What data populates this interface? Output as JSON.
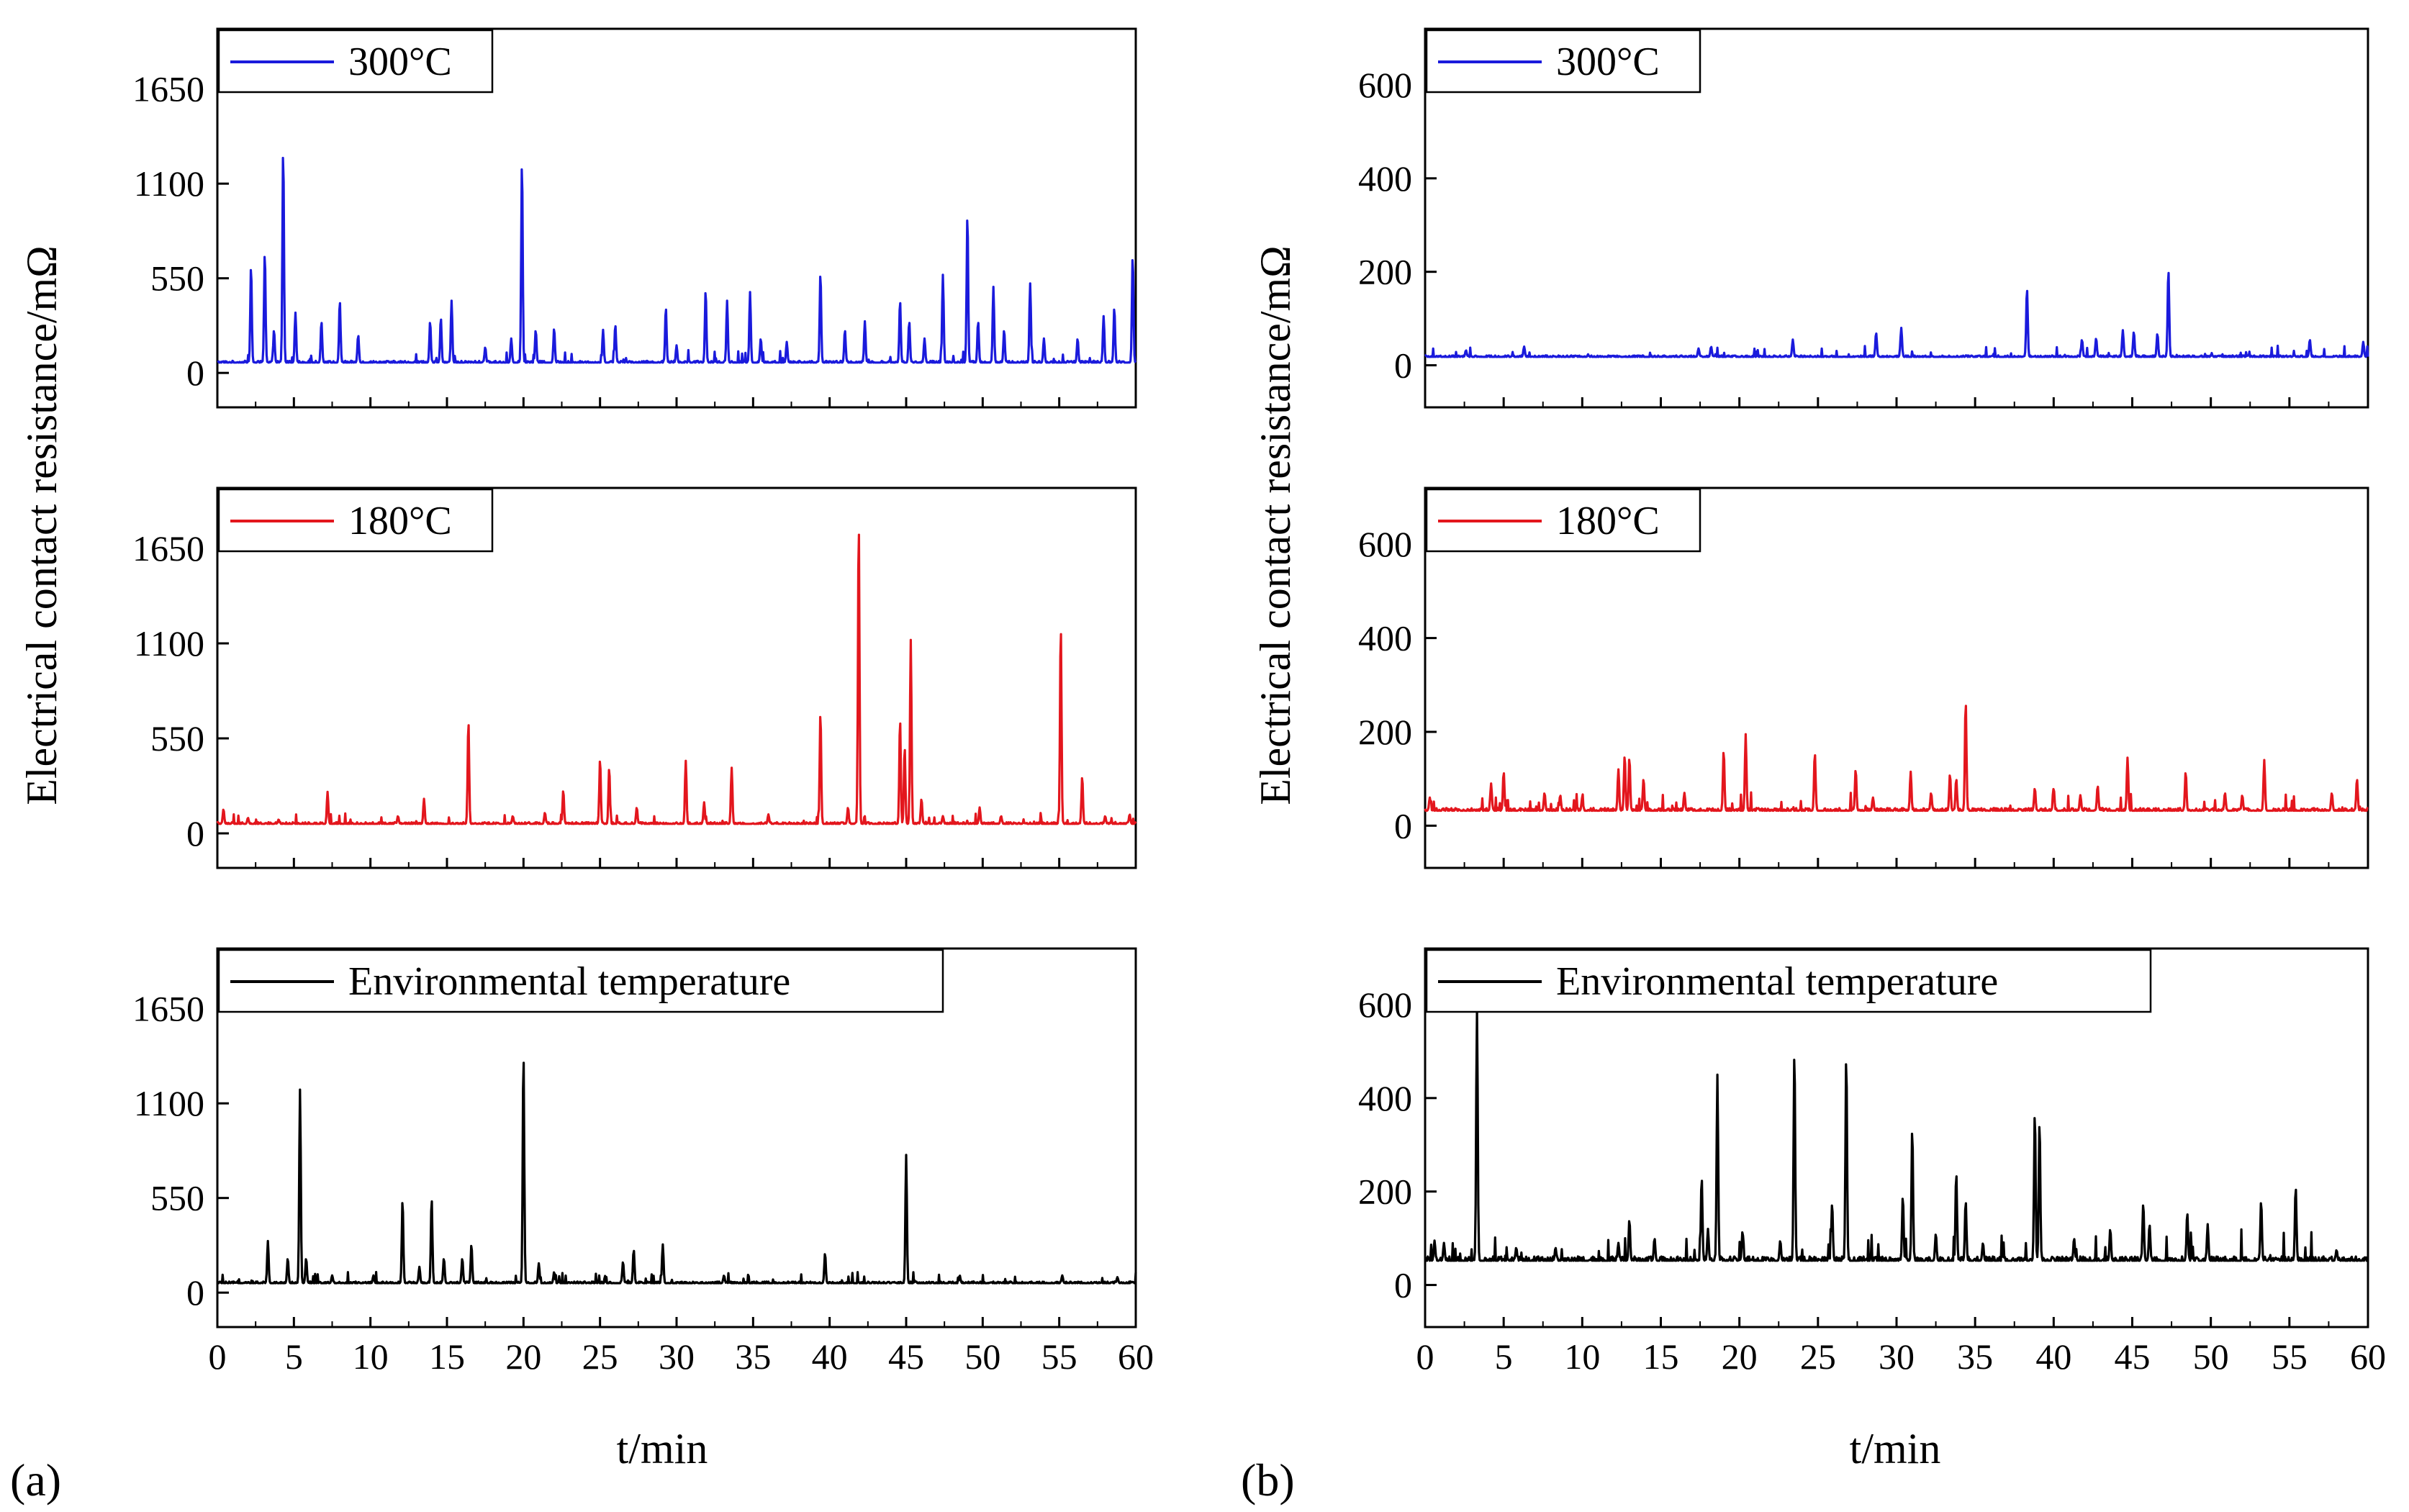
{
  "panel_labels": [
    "(a)",
    "(b)"
  ],
  "colors": {
    "300": "#1a1adc",
    "180": "#e3161d",
    "env": "#000000"
  },
  "chart_data": [
    {
      "id": "a-300",
      "type": "line",
      "panel": "(a)",
      "legend": "300°C",
      "color": "#1a1adc",
      "ylabel": "Electrical contact resistance/mΩ",
      "xlabel": "",
      "xlim": [
        0,
        60
      ],
      "ylim": [
        -200,
        2000
      ],
      "yticks": [
        0,
        550,
        1100,
        1650
      ],
      "xticks": [
        0,
        5,
        10,
        15,
        20,
        25,
        30,
        35,
        40,
        45,
        50,
        55,
        60
      ],
      "baseline": 60,
      "peaks": [
        [
          2.2,
          620
        ],
        [
          3.1,
          700
        ],
        [
          3.7,
          250
        ],
        [
          4.3,
          1300
        ],
        [
          5.1,
          350
        ],
        [
          6.8,
          300
        ],
        [
          8.0,
          420
        ],
        [
          9.2,
          220
        ],
        [
          13.9,
          300
        ],
        [
          14.6,
          320
        ],
        [
          15.3,
          420
        ],
        [
          17.5,
          150
        ],
        [
          19.2,
          200
        ],
        [
          19.9,
          1230
        ],
        [
          20.8,
          250
        ],
        [
          22.0,
          260
        ],
        [
          25.2,
          250
        ],
        [
          26.0,
          280
        ],
        [
          29.3,
          380
        ],
        [
          30.0,
          160
        ],
        [
          31.9,
          480
        ],
        [
          33.3,
          420
        ],
        [
          34.8,
          470
        ],
        [
          35.5,
          200
        ],
        [
          37.2,
          180
        ],
        [
          39.4,
          580
        ],
        [
          41.0,
          250
        ],
        [
          42.3,
          300
        ],
        [
          44.6,
          420
        ],
        [
          45.2,
          300
        ],
        [
          46.2,
          200
        ],
        [
          47.4,
          570
        ],
        [
          49.0,
          920
        ],
        [
          49.7,
          300
        ],
        [
          50.7,
          500
        ],
        [
          51.4,
          250
        ],
        [
          53.1,
          520
        ],
        [
          54.0,
          200
        ],
        [
          56.2,
          200
        ],
        [
          57.9,
          330
        ],
        [
          58.6,
          380
        ],
        [
          59.8,
          680
        ]
      ]
    },
    {
      "id": "a-180",
      "type": "line",
      "panel": "(a)",
      "legend": "180°C",
      "color": "#e3161d",
      "xlim": [
        0,
        60
      ],
      "ylim": [
        -200,
        2000
      ],
      "yticks": [
        0,
        550,
        1100,
        1650
      ],
      "xticks": [
        0,
        5,
        10,
        15,
        20,
        25,
        30,
        35,
        40,
        45,
        50,
        55,
        60
      ],
      "baseline": 55,
      "peaks": [
        [
          0.4,
          140
        ],
        [
          2.0,
          90
        ],
        [
          4.0,
          80
        ],
        [
          7.2,
          240
        ],
        [
          11.8,
          100
        ],
        [
          13.5,
          200
        ],
        [
          16.4,
          650
        ],
        [
          19.3,
          100
        ],
        [
          21.4,
          120
        ],
        [
          22.6,
          250
        ],
        [
          25.0,
          430
        ],
        [
          25.6,
          380
        ],
        [
          27.4,
          150
        ],
        [
          30.6,
          420
        ],
        [
          31.8,
          180
        ],
        [
          33.6,
          380
        ],
        [
          36.0,
          110
        ],
        [
          39.4,
          700
        ],
        [
          41.2,
          150
        ],
        [
          41.9,
          1800
        ],
        [
          44.6,
          660
        ],
        [
          44.9,
          500
        ],
        [
          45.3,
          1120
        ],
        [
          46.0,
          200
        ],
        [
          47.4,
          100
        ],
        [
          49.8,
          150
        ],
        [
          51.2,
          100
        ],
        [
          55.1,
          1200
        ],
        [
          56.5,
          330
        ],
        [
          58.0,
          100
        ],
        [
          59.6,
          110
        ]
      ]
    },
    {
      "id": "a-env",
      "type": "line",
      "panel": "(a)",
      "legend": "Environmental temperature",
      "color": "#000000",
      "xlabel": "t/min",
      "xlim": [
        0,
        60
      ],
      "ylim": [
        -200,
        2000
      ],
      "yticks": [
        0,
        550,
        1100,
        1650
      ],
      "xticks": [
        0,
        5,
        10,
        15,
        20,
        25,
        30,
        35,
        40,
        45,
        50,
        55,
        60
      ],
      "baseline": 55,
      "peaks": [
        [
          3.3,
          300
        ],
        [
          4.6,
          200
        ],
        [
          5.4,
          1180
        ],
        [
          5.8,
          200
        ],
        [
          7.5,
          100
        ],
        [
          10.2,
          100
        ],
        [
          12.1,
          540
        ],
        [
          13.2,
          150
        ],
        [
          14.0,
          550
        ],
        [
          14.8,
          200
        ],
        [
          16.0,
          200
        ],
        [
          16.6,
          280
        ],
        [
          20.0,
          1390
        ],
        [
          21.0,
          170
        ],
        [
          22.0,
          120
        ],
        [
          26.5,
          180
        ],
        [
          27.2,
          250
        ],
        [
          29.1,
          280
        ],
        [
          33.1,
          100
        ],
        [
          39.7,
          230
        ],
        [
          45.0,
          800
        ],
        [
          48.5,
          100
        ],
        [
          55.2,
          100
        ],
        [
          58.8,
          90
        ]
      ]
    },
    {
      "id": "b-300",
      "type": "line",
      "panel": "(b)",
      "legend": "300°C",
      "color": "#1a1adc",
      "ylabel": "Electrical contact resistance/mΩ",
      "xlabel": "",
      "xlim": [
        0,
        60
      ],
      "ylim": [
        -90,
        720
      ],
      "yticks": [
        0,
        200,
        400,
        600
      ],
      "xticks": [
        0,
        5,
        10,
        15,
        20,
        25,
        30,
        35,
        40,
        45,
        50,
        55,
        60
      ],
      "baseline": 18,
      "peaks": [
        [
          2.6,
          32
        ],
        [
          6.3,
          40
        ],
        [
          17.4,
          36
        ],
        [
          18.2,
          40
        ],
        [
          23.4,
          55
        ],
        [
          28.7,
          70
        ],
        [
          30.3,
          80
        ],
        [
          38.3,
          165
        ],
        [
          41.8,
          55
        ],
        [
          42.7,
          58
        ],
        [
          44.4,
          75
        ],
        [
          45.1,
          72
        ],
        [
          46.6,
          68
        ],
        [
          47.3,
          205
        ],
        [
          56.3,
          55
        ],
        [
          59.7,
          50
        ]
      ]
    },
    {
      "id": "b-180",
      "type": "line",
      "panel": "(b)",
      "legend": "180°C",
      "color": "#e3161d",
      "xlim": [
        0,
        60
      ],
      "ylim": [
        -90,
        720
      ],
      "yticks": [
        0,
        200,
        400,
        600
      ],
      "xticks": [
        0,
        5,
        10,
        15,
        20,
        25,
        30,
        35,
        40,
        45,
        50,
        55,
        60
      ],
      "baseline": 32,
      "peaks": [
        [
          0.3,
          60
        ],
        [
          4.2,
          90
        ],
        [
          5.0,
          115
        ],
        [
          7.6,
          70
        ],
        [
          8.6,
          65
        ],
        [
          10.0,
          60
        ],
        [
          12.3,
          120
        ],
        [
          12.7,
          150
        ],
        [
          13.0,
          145
        ],
        [
          13.9,
          100
        ],
        [
          16.5,
          70
        ],
        [
          19.0,
          160
        ],
        [
          20.4,
          195
        ],
        [
          24.8,
          155
        ],
        [
          27.4,
          120
        ],
        [
          28.5,
          60
        ],
        [
          30.9,
          115
        ],
        [
          32.2,
          70
        ],
        [
          33.4,
          110
        ],
        [
          33.8,
          100
        ],
        [
          34.4,
          265
        ],
        [
          38.8,
          80
        ],
        [
          40.0,
          80
        ],
        [
          41.7,
          65
        ],
        [
          42.8,
          85
        ],
        [
          44.7,
          145
        ],
        [
          48.4,
          115
        ],
        [
          50.9,
          70
        ],
        [
          52.0,
          65
        ],
        [
          53.4,
          140
        ],
        [
          57.7,
          70
        ],
        [
          59.3,
          100
        ]
      ]
    },
    {
      "id": "b-env",
      "type": "line",
      "panel": "(b)",
      "legend": "Environmental temperature",
      "color": "#000000",
      "xlabel": "t/min",
      "xlim": [
        0,
        60
      ],
      "ylim": [
        -90,
        720
      ],
      "yticks": [
        0,
        200,
        400,
        600
      ],
      "xticks": [
        0,
        5,
        10,
        15,
        20,
        25,
        30,
        35,
        40,
        45,
        50,
        55,
        60
      ],
      "baseline": 52,
      "peaks": [
        [
          0.6,
          95
        ],
        [
          1.2,
          90
        ],
        [
          3.3,
          590
        ],
        [
          5.8,
          80
        ],
        [
          8.3,
          80
        ],
        [
          12.3,
          90
        ],
        [
          13.0,
          140
        ],
        [
          14.6,
          100
        ],
        [
          17.6,
          230
        ],
        [
          18.0,
          120
        ],
        [
          18.6,
          450
        ],
        [
          20.2,
          115
        ],
        [
          22.6,
          95
        ],
        [
          23.5,
          500
        ],
        [
          25.9,
          175
        ],
        [
          26.8,
          490
        ],
        [
          30.4,
          190
        ],
        [
          31.0,
          335
        ],
        [
          32.5,
          110
        ],
        [
          33.8,
          240
        ],
        [
          34.4,
          180
        ],
        [
          35.5,
          90
        ],
        [
          38.8,
          370
        ],
        [
          39.1,
          350
        ],
        [
          41.3,
          100
        ],
        [
          43.6,
          120
        ],
        [
          45.7,
          175
        ],
        [
          46.1,
          130
        ],
        [
          48.5,
          155
        ],
        [
          49.8,
          130
        ],
        [
          53.2,
          180
        ],
        [
          55.4,
          210
        ],
        [
          58.0,
          75
        ]
      ]
    }
  ]
}
